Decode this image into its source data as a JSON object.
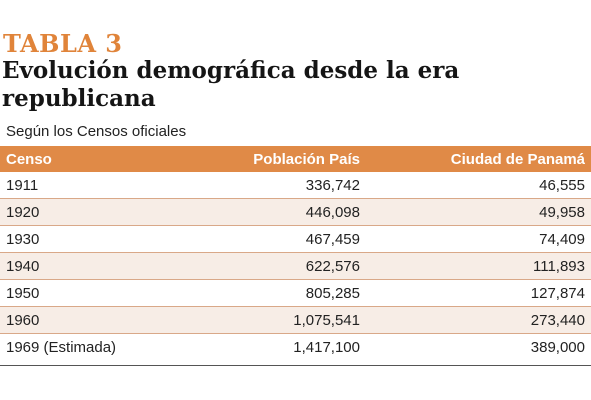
{
  "header": {
    "kicker": "TABLA 3",
    "title": "Evolución demográfica desde la era republicana",
    "subtitle": "Según los Censos oficiales"
  },
  "table": {
    "columns": [
      "Censo",
      "Población País",
      "Ciudad de Panamá"
    ],
    "rows": [
      [
        "1911",
        "336,742",
        "46,555"
      ],
      [
        "1920",
        "446,098",
        "49,958"
      ],
      [
        "1930",
        "467,459",
        "74,409"
      ],
      [
        "1940",
        "622,576",
        "111,893"
      ],
      [
        "1950",
        "805,285",
        "127,874"
      ],
      [
        "1960",
        "1,075,541",
        "273,440"
      ],
      [
        "1969 (Estimada)",
        "1,417,100",
        "389,000"
      ]
    ]
  },
  "colors": {
    "accent": "#e08a47",
    "kicker": "#e0843a",
    "row_alt": "#f7ede6"
  }
}
